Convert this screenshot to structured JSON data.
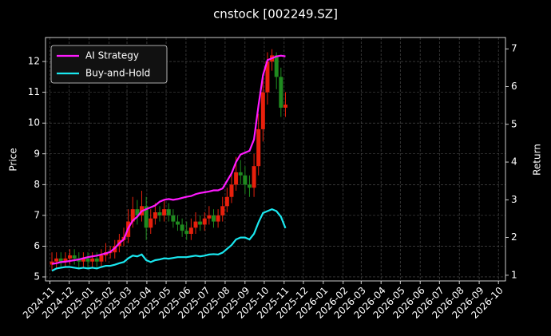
{
  "chart_data": {
    "type": "candlestick",
    "title": "cnstock [002249.SZ]",
    "ylabel": "Price",
    "y2label": "Return",
    "x": [
      "2024-11-04",
      "2024-11-11",
      "2024-11-18",
      "2024-11-25",
      "2024-12-02",
      "2024-12-09",
      "2024-12-16",
      "2024-12-23",
      "2024-12-30",
      "2025-01-06",
      "2025-01-13",
      "2025-01-20",
      "2025-01-27",
      "2025-02-03",
      "2025-02-10",
      "2025-02-17",
      "2025-02-24",
      "2025-03-03",
      "2025-03-10",
      "2025-03-17",
      "2025-03-24",
      "2025-03-31",
      "2025-04-07",
      "2025-04-14",
      "2025-04-21",
      "2025-04-28",
      "2025-05-05",
      "2025-05-12",
      "2025-05-19",
      "2025-05-26",
      "2025-06-02",
      "2025-06-09",
      "2025-06-16",
      "2025-06-23",
      "2025-06-30",
      "2025-07-07",
      "2025-07-14",
      "2025-07-21",
      "2025-07-28",
      "2025-08-04",
      "2025-08-11",
      "2025-08-18",
      "2025-08-25",
      "2025-09-01",
      "2025-09-08",
      "2025-09-15",
      "2025-09-22",
      "2025-09-29",
      "2025-10-06",
      "2025-10-13",
      "2025-10-20",
      "2025-10-27",
      "2025-11-03"
    ],
    "open": [
      5.4,
      5.5,
      5.6,
      5.5,
      5.6,
      5.7,
      5.6,
      5.5,
      5.6,
      5.5,
      5.6,
      5.5,
      5.7,
      5.8,
      5.8,
      6.0,
      6.2,
      6.3,
      6.8,
      7.2,
      7.0,
      7.3,
      6.6,
      6.9,
      7.1,
      7.0,
      7.2,
      7.0,
      6.8,
      6.7,
      6.5,
      6.4,
      6.6,
      6.8,
      6.7,
      6.9,
      7.0,
      6.8,
      7.0,
      7.3,
      7.6,
      8.0,
      8.4,
      8.3,
      8.0,
      7.9,
      8.6,
      9.8,
      11.0,
      12.0,
      12.2,
      11.5,
      10.5
    ],
    "high": [
      5.8,
      5.8,
      5.8,
      5.8,
      5.9,
      5.9,
      5.8,
      5.8,
      5.8,
      5.8,
      5.8,
      5.9,
      6.1,
      6.0,
      6.2,
      6.4,
      6.6,
      7.2,
      7.6,
      7.5,
      7.8,
      7.6,
      7.2,
      7.4,
      7.3,
      7.5,
      7.4,
      7.2,
      7.0,
      6.9,
      6.8,
      6.9,
      7.1,
      7.0,
      7.1,
      7.3,
      7.2,
      7.2,
      7.6,
      7.9,
      8.4,
      8.9,
      8.8,
      8.6,
      8.3,
      9.0,
      10.3,
      11.6,
      12.3,
      12.4,
      12.3,
      11.8,
      11.0
    ],
    "low": [
      5.2,
      5.3,
      5.3,
      5.3,
      5.4,
      5.4,
      5.3,
      5.3,
      5.3,
      5.3,
      5.3,
      5.3,
      5.5,
      5.6,
      5.6,
      5.8,
      6.0,
      6.1,
      6.6,
      6.7,
      6.8,
      6.2,
      6.4,
      6.7,
      6.8,
      6.8,
      6.8,
      6.6,
      6.5,
      6.3,
      6.2,
      6.2,
      6.4,
      6.5,
      6.5,
      6.7,
      6.6,
      6.6,
      6.8,
      7.1,
      7.4,
      7.8,
      8.0,
      7.7,
      7.6,
      7.6,
      8.3,
      9.4,
      10.6,
      11.7,
      11.1,
      10.2,
      10.2
    ],
    "close": [
      5.5,
      5.6,
      5.5,
      5.6,
      5.7,
      5.6,
      5.5,
      5.6,
      5.5,
      5.6,
      5.5,
      5.7,
      5.8,
      5.8,
      6.0,
      6.2,
      6.3,
      6.8,
      7.2,
      7.0,
      7.3,
      6.6,
      6.9,
      7.1,
      7.0,
      7.2,
      7.0,
      6.8,
      6.7,
      6.5,
      6.4,
      6.6,
      6.8,
      6.7,
      6.9,
      7.0,
      6.8,
      7.0,
      7.3,
      7.6,
      8.0,
      8.4,
      8.3,
      8.0,
      7.9,
      8.6,
      9.8,
      11.0,
      12.0,
      12.2,
      11.5,
      10.5,
      10.6
    ],
    "up_color": "#e8200c",
    "down_color": "#1f8a1f",
    "series": [
      {
        "name": "AI Strategy",
        "color": "#ff1aff",
        "axis": "y2",
        "values": [
          1.3,
          1.32,
          1.35,
          1.36,
          1.38,
          1.4,
          1.42,
          1.45,
          1.48,
          1.5,
          1.52,
          1.55,
          1.58,
          1.62,
          1.72,
          1.85,
          1.95,
          2.25,
          2.45,
          2.55,
          2.7,
          2.75,
          2.8,
          2.85,
          2.95,
          3.0,
          3.02,
          3.0,
          3.02,
          3.05,
          3.08,
          3.1,
          3.15,
          3.18,
          3.2,
          3.22,
          3.25,
          3.25,
          3.3,
          3.5,
          3.7,
          4.0,
          4.2,
          4.25,
          4.3,
          4.6,
          5.5,
          6.3,
          6.7,
          6.75,
          6.8,
          6.82,
          6.8
        ]
      },
      {
        "name": "Buy-and-Hold",
        "color": "#1ae8f0",
        "axis": "y2",
        "values": [
          1.12,
          1.18,
          1.2,
          1.22,
          1.22,
          1.2,
          1.18,
          1.2,
          1.18,
          1.2,
          1.18,
          1.22,
          1.25,
          1.25,
          1.28,
          1.32,
          1.35,
          1.45,
          1.52,
          1.5,
          1.55,
          1.4,
          1.35,
          1.4,
          1.42,
          1.45,
          1.44,
          1.46,
          1.48,
          1.48,
          1.48,
          1.5,
          1.52,
          1.5,
          1.52,
          1.55,
          1.56,
          1.55,
          1.6,
          1.7,
          1.8,
          1.95,
          2.0,
          2.0,
          1.95,
          2.1,
          2.4,
          2.65,
          2.7,
          2.75,
          2.7,
          2.55,
          2.25
        ]
      }
    ],
    "xlim": [
      "2024-10-25",
      "2026-10-12"
    ],
    "xticks": [
      {
        "value": "2024-11-01",
        "label": "2024-11"
      },
      {
        "value": "2024-12-01",
        "label": "2024-12"
      },
      {
        "value": "2025-01-01",
        "label": "2025-01"
      },
      {
        "value": "2025-02-01",
        "label": "2025-02"
      },
      {
        "value": "2025-03-01",
        "label": "2025-03"
      },
      {
        "value": "2025-04-01",
        "label": "2025-04"
      },
      {
        "value": "2025-05-01",
        "label": "2025-05"
      },
      {
        "value": "2025-06-01",
        "label": "2025-06"
      },
      {
        "value": "2025-07-01",
        "label": "2025-07"
      },
      {
        "value": "2025-08-01",
        "label": "2025-08"
      },
      {
        "value": "2025-09-01",
        "label": "2025-09"
      },
      {
        "value": "2025-10-01",
        "label": "2025-10"
      },
      {
        "value": "2025-11-01",
        "label": "2025-11"
      },
      {
        "value": "2025-12-01",
        "label": "2025-12"
      },
      {
        "value": "2026-01-01",
        "label": "2026-01"
      },
      {
        "value": "2026-02-01",
        "label": "2026-02"
      },
      {
        "value": "2026-03-01",
        "label": "2026-03"
      },
      {
        "value": "2026-04-01",
        "label": "2026-04"
      },
      {
        "value": "2026-05-01",
        "label": "2026-05"
      },
      {
        "value": "2026-06-01",
        "label": "2026-06"
      },
      {
        "value": "2026-07-01",
        "label": "2026-07"
      },
      {
        "value": "2026-08-01",
        "label": "2026-08"
      },
      {
        "value": "2026-09-01",
        "label": "2026-09"
      },
      {
        "value": "2026-10-01",
        "label": "2026-10"
      }
    ],
    "ylim": [
      4.87,
      12.78
    ],
    "yticks": [
      5,
      6,
      7,
      8,
      9,
      10,
      11,
      12
    ],
    "y2lim": [
      0.85,
      7.3
    ],
    "y2ticks": [
      1,
      2,
      3,
      4,
      5,
      6,
      7
    ],
    "grid": true,
    "legend": "upper left"
  }
}
